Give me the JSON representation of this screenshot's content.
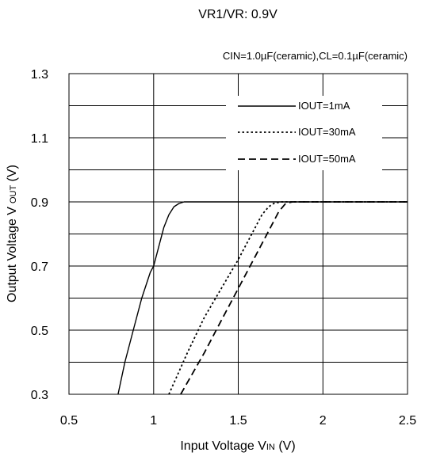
{
  "chart_data": {
    "type": "line",
    "title": "VR1/VR: 0.9V",
    "subtitle": "CIN=1.0µF(ceramic),CL=0.1µF(ceramic)",
    "xlabel_main": "Input Voltage V",
    "xlabel_sub": "IN",
    "xlabel_unit": " (V)",
    "ylabel_main": "Output Voltage V",
    "ylabel_sub": "OUT",
    "ylabel_unit": " (V)",
    "xlim": [
      0.5,
      2.5
    ],
    "ylim": [
      0.3,
      1.3
    ],
    "xticks": [
      0.5,
      1,
      1.5,
      2,
      2.5
    ],
    "xtick_labels": [
      "0.5",
      "1",
      "1.5",
      "2",
      "2.5"
    ],
    "yticks": [
      0.3,
      0.5,
      0.7,
      0.9,
      1.1,
      1.3
    ],
    "ytick_labels": [
      "0.3",
      "0.5",
      "0.7",
      "0.9",
      "1.1",
      "1.3"
    ],
    "grid": "horizontal",
    "legend_position": "top-right",
    "series": [
      {
        "name": "IOUT=1mA",
        "style": "solid",
        "x": [
          0.79,
          0.83,
          0.88,
          0.93,
          0.98,
          1.0,
          1.03,
          1.06,
          1.09,
          1.12,
          1.15,
          1.18,
          1.25,
          1.5,
          2.0,
          2.5
        ],
        "y": [
          0.3,
          0.4,
          0.5,
          0.6,
          0.68,
          0.7,
          0.76,
          0.82,
          0.86,
          0.885,
          0.895,
          0.9,
          0.9,
          0.9,
          0.9,
          0.9
        ]
      },
      {
        "name": "IOUT=30mA",
        "style": "dotted",
        "x": [
          1.09,
          1.2,
          1.3,
          1.4,
          1.5,
          1.55,
          1.6,
          1.64,
          1.68,
          1.71,
          1.75,
          2.0,
          2.5
        ],
        "y": [
          0.3,
          0.43,
          0.54,
          0.63,
          0.72,
          0.77,
          0.82,
          0.86,
          0.885,
          0.895,
          0.9,
          0.9,
          0.9
        ]
      },
      {
        "name": "IOUT=50mA",
        "style": "dashed",
        "x": [
          1.16,
          1.3,
          1.4,
          1.5,
          1.6,
          1.7,
          1.74,
          1.78,
          1.82,
          2.0,
          2.5
        ],
        "y": [
          0.3,
          0.43,
          0.53,
          0.63,
          0.73,
          0.83,
          0.87,
          0.895,
          0.9,
          0.9,
          0.9
        ]
      }
    ]
  }
}
